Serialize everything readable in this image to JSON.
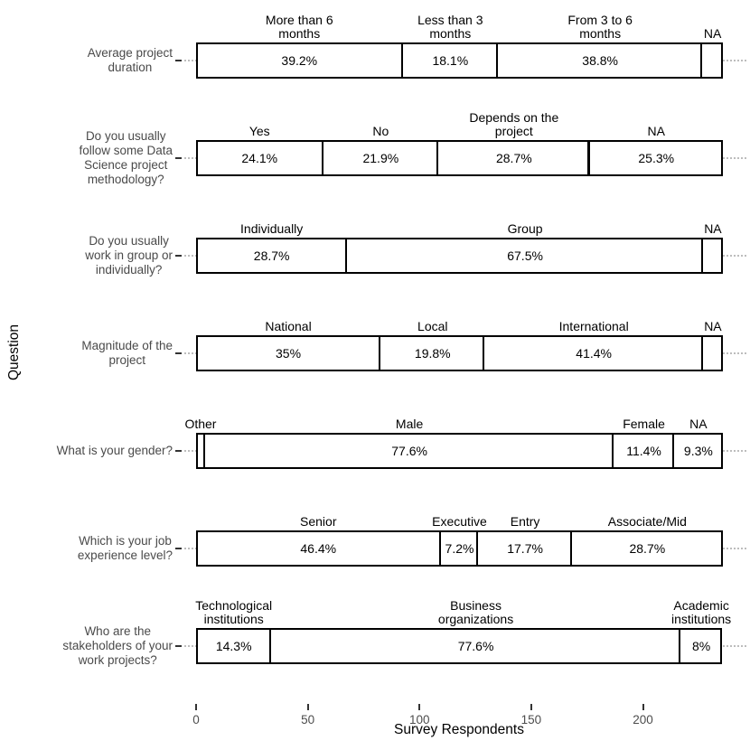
{
  "chart_data": {
    "type": "bar",
    "variant": "horizontal-stacked-percentage",
    "title": "",
    "xlabel": "Survey Respondents",
    "ylabel": "Question",
    "x_ticks": [
      0,
      50,
      100,
      150,
      200
    ],
    "grid": "dotted-horizontal-row-lines",
    "legend_position": "none",
    "bar_fill": "#ffffff",
    "bar_border": "#000000",
    "rows": [
      {
        "question": "Average project duration",
        "question_lines": [
          "Average project",
          "duration"
        ],
        "segments": [
          {
            "label": "More than 6 months",
            "label_lines": [
              "More than 6",
              "months"
            ],
            "pct": 39.2,
            "pct_text": "39.2%"
          },
          {
            "label": "Less than 3 months",
            "label_lines": [
              "Less than 3",
              "months"
            ],
            "pct": 18.1,
            "pct_text": "18.1%"
          },
          {
            "label": "From 3 to 6 months",
            "label_lines": [
              "From 3 to 6",
              "months"
            ],
            "pct": 38.8,
            "pct_text": "38.8%"
          },
          {
            "label": "NA",
            "label_lines": [
              "NA"
            ],
            "pct": null,
            "pct_text": ""
          }
        ]
      },
      {
        "question": "Do you usually follow some Data Science project methodology?",
        "question_lines": [
          "Do you usually",
          "follow some Data",
          "Science project",
          "methodology?"
        ],
        "segments": [
          {
            "label": "Yes",
            "label_lines": [
              "Yes"
            ],
            "pct": 24.1,
            "pct_text": "24.1%"
          },
          {
            "label": "No",
            "label_lines": [
              "No"
            ],
            "pct": 21.9,
            "pct_text": "21.9%"
          },
          {
            "label": "Depends on the project",
            "label_lines": [
              "Depends on the",
              "project"
            ],
            "pct": 28.7,
            "pct_text": "28.7%"
          },
          {
            "label": "NA",
            "label_lines": [
              "NA"
            ],
            "pct": 25.3,
            "pct_text": "25.3%"
          }
        ]
      },
      {
        "question": "Do you usually work in group or individually?",
        "question_lines": [
          "Do you usually",
          "work in group or",
          "individually?"
        ],
        "segments": [
          {
            "label": "Individually",
            "label_lines": [
              "Individually"
            ],
            "pct": 28.7,
            "pct_text": "28.7%"
          },
          {
            "label": "Group",
            "label_lines": [
              "Group"
            ],
            "pct": 67.5,
            "pct_text": "67.5%"
          },
          {
            "label": "NA",
            "label_lines": [
              "NA"
            ],
            "pct": null,
            "pct_text": ""
          }
        ]
      },
      {
        "question": "Magnitude of the project",
        "question_lines": [
          "Magnitude of the",
          "project"
        ],
        "segments": [
          {
            "label": "National",
            "label_lines": [
              "National"
            ],
            "pct": 35,
            "pct_text": "35%"
          },
          {
            "label": "Local",
            "label_lines": [
              "Local"
            ],
            "pct": 19.8,
            "pct_text": "19.8%"
          },
          {
            "label": "International",
            "label_lines": [
              "International"
            ],
            "pct": 41.4,
            "pct_text": "41.4%"
          },
          {
            "label": "NA",
            "label_lines": [
              "NA"
            ],
            "pct": null,
            "pct_text": ""
          }
        ]
      },
      {
        "question": "What is your gender?",
        "question_lines": [
          "What is your gender?"
        ],
        "segments": [
          {
            "label": "Other",
            "label_lines": [
              "Other"
            ],
            "pct": null,
            "pct_text": ""
          },
          {
            "label": "Male",
            "label_lines": [
              "Male"
            ],
            "pct": 77.6,
            "pct_text": "77.6%"
          },
          {
            "label": "Female",
            "label_lines": [
              "Female"
            ],
            "pct": 11.4,
            "pct_text": "11.4%"
          },
          {
            "label": "NA",
            "label_lines": [
              "NA"
            ],
            "pct": 9.3,
            "pct_text": "9.3%"
          }
        ]
      },
      {
        "question": "Which is your job experience level?",
        "question_lines": [
          "Which is your job",
          "experience level?"
        ],
        "segments": [
          {
            "label": "Senior",
            "label_lines": [
              "Senior"
            ],
            "pct": 46.4,
            "pct_text": "46.4%"
          },
          {
            "label": "Executive",
            "label_lines": [
              "Executive"
            ],
            "pct": 7.2,
            "pct_text": "7.2%"
          },
          {
            "label": "Entry",
            "label_lines": [
              "Entry"
            ],
            "pct": 17.7,
            "pct_text": "17.7%"
          },
          {
            "label": "Associate/Mid",
            "label_lines": [
              "Associate/Mid"
            ],
            "pct": 28.7,
            "pct_text": "28.7%"
          }
        ]
      },
      {
        "question": "Who are the stakeholders of your work projects?",
        "question_lines": [
          "Who are the",
          "stakeholders of your",
          "work projects?"
        ],
        "segments": [
          {
            "label": "Technological institutions",
            "label_lines": [
              "Technological",
              "institutions"
            ],
            "pct": 14.3,
            "pct_text": "14.3%"
          },
          {
            "label": "Business organizations",
            "label_lines": [
              "Business",
              "organizations"
            ],
            "pct": 77.6,
            "pct_text": "77.6%"
          },
          {
            "label": "Academic institutions",
            "label_lines": [
              "Academic",
              "institutions"
            ],
            "pct": 8,
            "pct_text": "8%"
          }
        ]
      }
    ]
  }
}
